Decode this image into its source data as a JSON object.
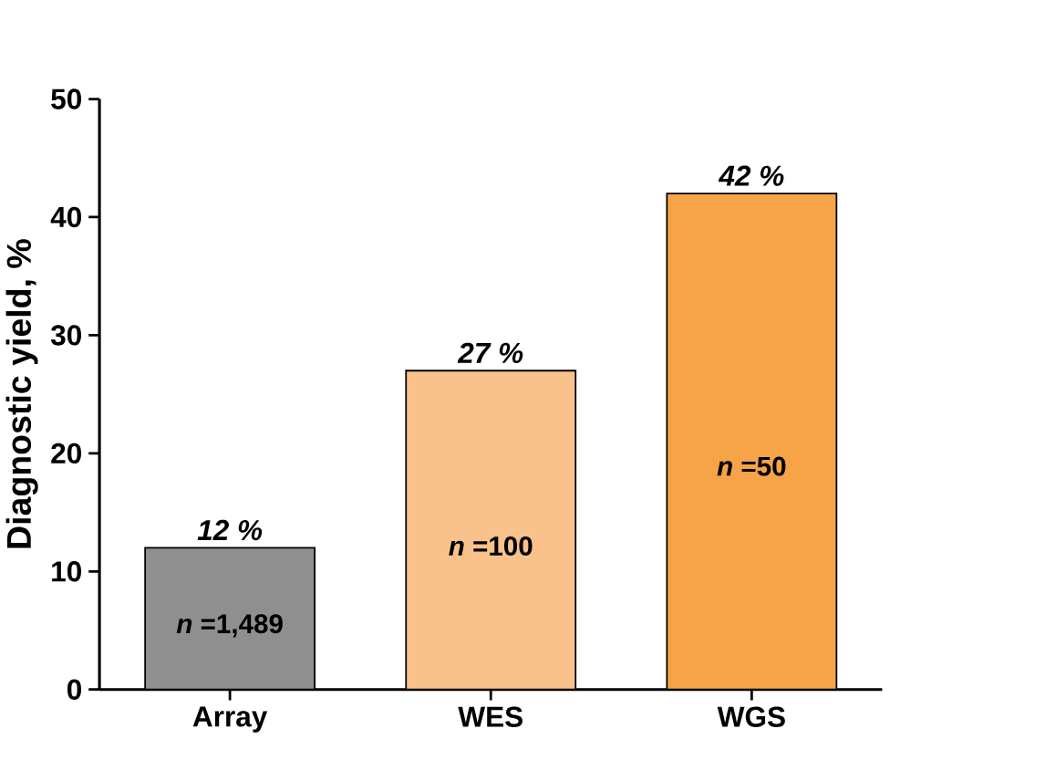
{
  "chart_data": {
    "type": "bar",
    "ylabel": "Diagnostic yield, %",
    "categories": [
      "Array",
      "WES",
      "WGS"
    ],
    "values": [
      12,
      27,
      42
    ],
    "colors": [
      "#8f8f8f",
      "#f9c28a",
      "#f7a347"
    ],
    "value_labels": [
      "12 %",
      "27 %",
      "42 %"
    ],
    "ylim": [
      0,
      50
    ],
    "yticks": [
      0,
      10,
      20,
      30,
      40,
      50
    ],
    "grid": false,
    "annotations": [
      "*n* =1,489",
      "*n* =100",
      "*n* =50"
    ]
  }
}
